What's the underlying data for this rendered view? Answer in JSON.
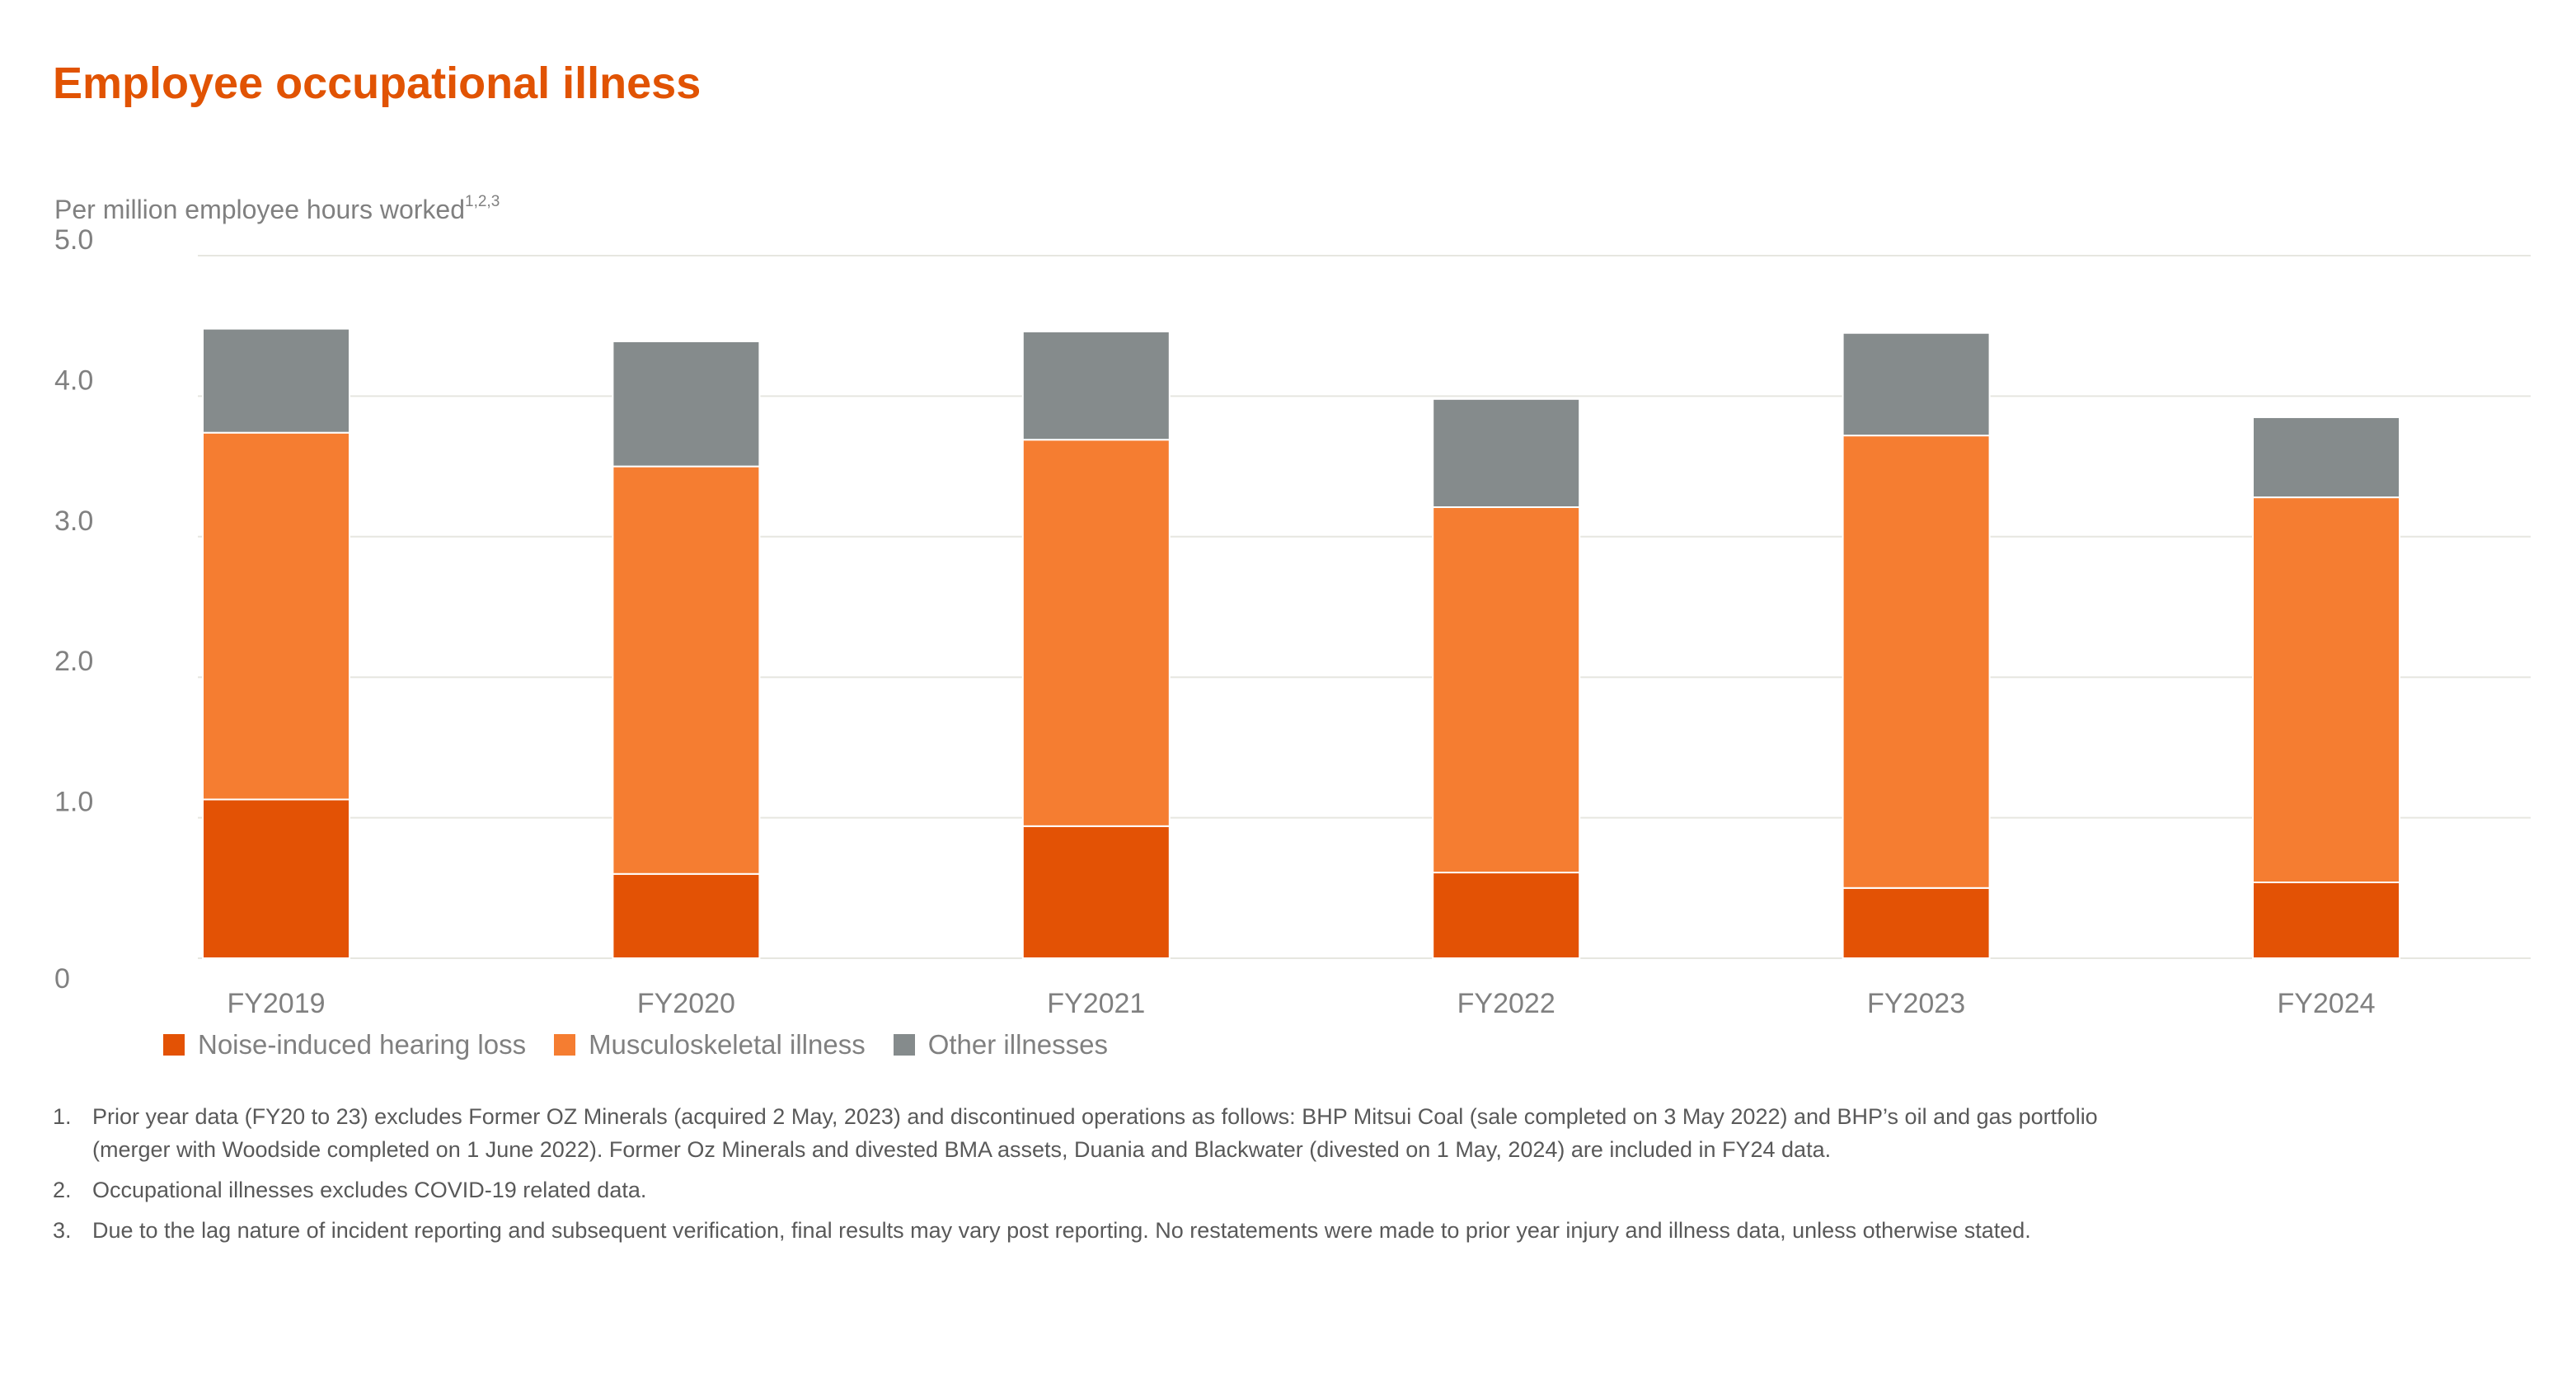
{
  "title": "Employee occupational illness",
  "subtitle": {
    "text": "Per million employee hours worked",
    "superscript": "1,2,3"
  },
  "colors": {
    "title": "#e15303",
    "axis_text": "#808080",
    "gridline": "#e6e6e0"
  },
  "chart_data": {
    "type": "bar",
    "stacked": true,
    "categories": [
      "FY2019",
      "FY2020",
      "FY2021",
      "FY2022",
      "FY2023",
      "FY2024"
    ],
    "series": [
      {
        "name": "Noise-induced hearing loss",
        "color": "#e35205",
        "values": [
          1.13,
          0.6,
          0.94,
          0.61,
          0.5,
          0.54
        ]
      },
      {
        "name": "Musculoskeletal illness",
        "color": "#f57d31",
        "values": [
          2.61,
          2.9,
          2.75,
          2.6,
          3.22,
          2.74
        ]
      },
      {
        "name": "Other illnesses",
        "color": "#858b8c",
        "values": [
          0.74,
          0.89,
          0.77,
          0.77,
          0.73,
          0.57
        ]
      }
    ],
    "ylim": [
      0,
      5
    ],
    "yticks": [
      0,
      1,
      2,
      3,
      4,
      5
    ],
    "ytick_labels": [
      "0",
      "1.0",
      "2.0",
      "3.0",
      "4.0",
      "5.0"
    ],
    "grid": true,
    "legend_position": "bottom-left"
  },
  "legend": [
    {
      "label": "Noise-induced hearing loss",
      "color": "#e35205"
    },
    {
      "label": "Musculoskeletal illness",
      "color": "#f57d31"
    },
    {
      "label": "Other illnesses",
      "color": "#858b8c"
    }
  ],
  "footnotes": [
    {
      "num": "1.",
      "lines": [
        "Prior year data (FY20 to 23) excludes Former OZ Minerals (acquired 2 May, 2023) and discontinued operations as follows: BHP Mitsui Coal (sale completed on 3 May 2022) and BHP’s oil and gas portfolio",
        "(merger with Woodside completed on 1 June 2022). Former Oz Minerals and divested BMA assets, Duania and Blackwater (divested on 1 May, 2024) are included in FY24 data."
      ]
    },
    {
      "num": "2.",
      "lines": [
        "Occupational illnesses excludes COVID-19 related data."
      ]
    },
    {
      "num": "3.",
      "lines": [
        "Due to the lag nature of incident reporting and subsequent verification, final results may vary post reporting. No restatements were made to prior year injury and illness data, unless otherwise stated."
      ]
    }
  ]
}
